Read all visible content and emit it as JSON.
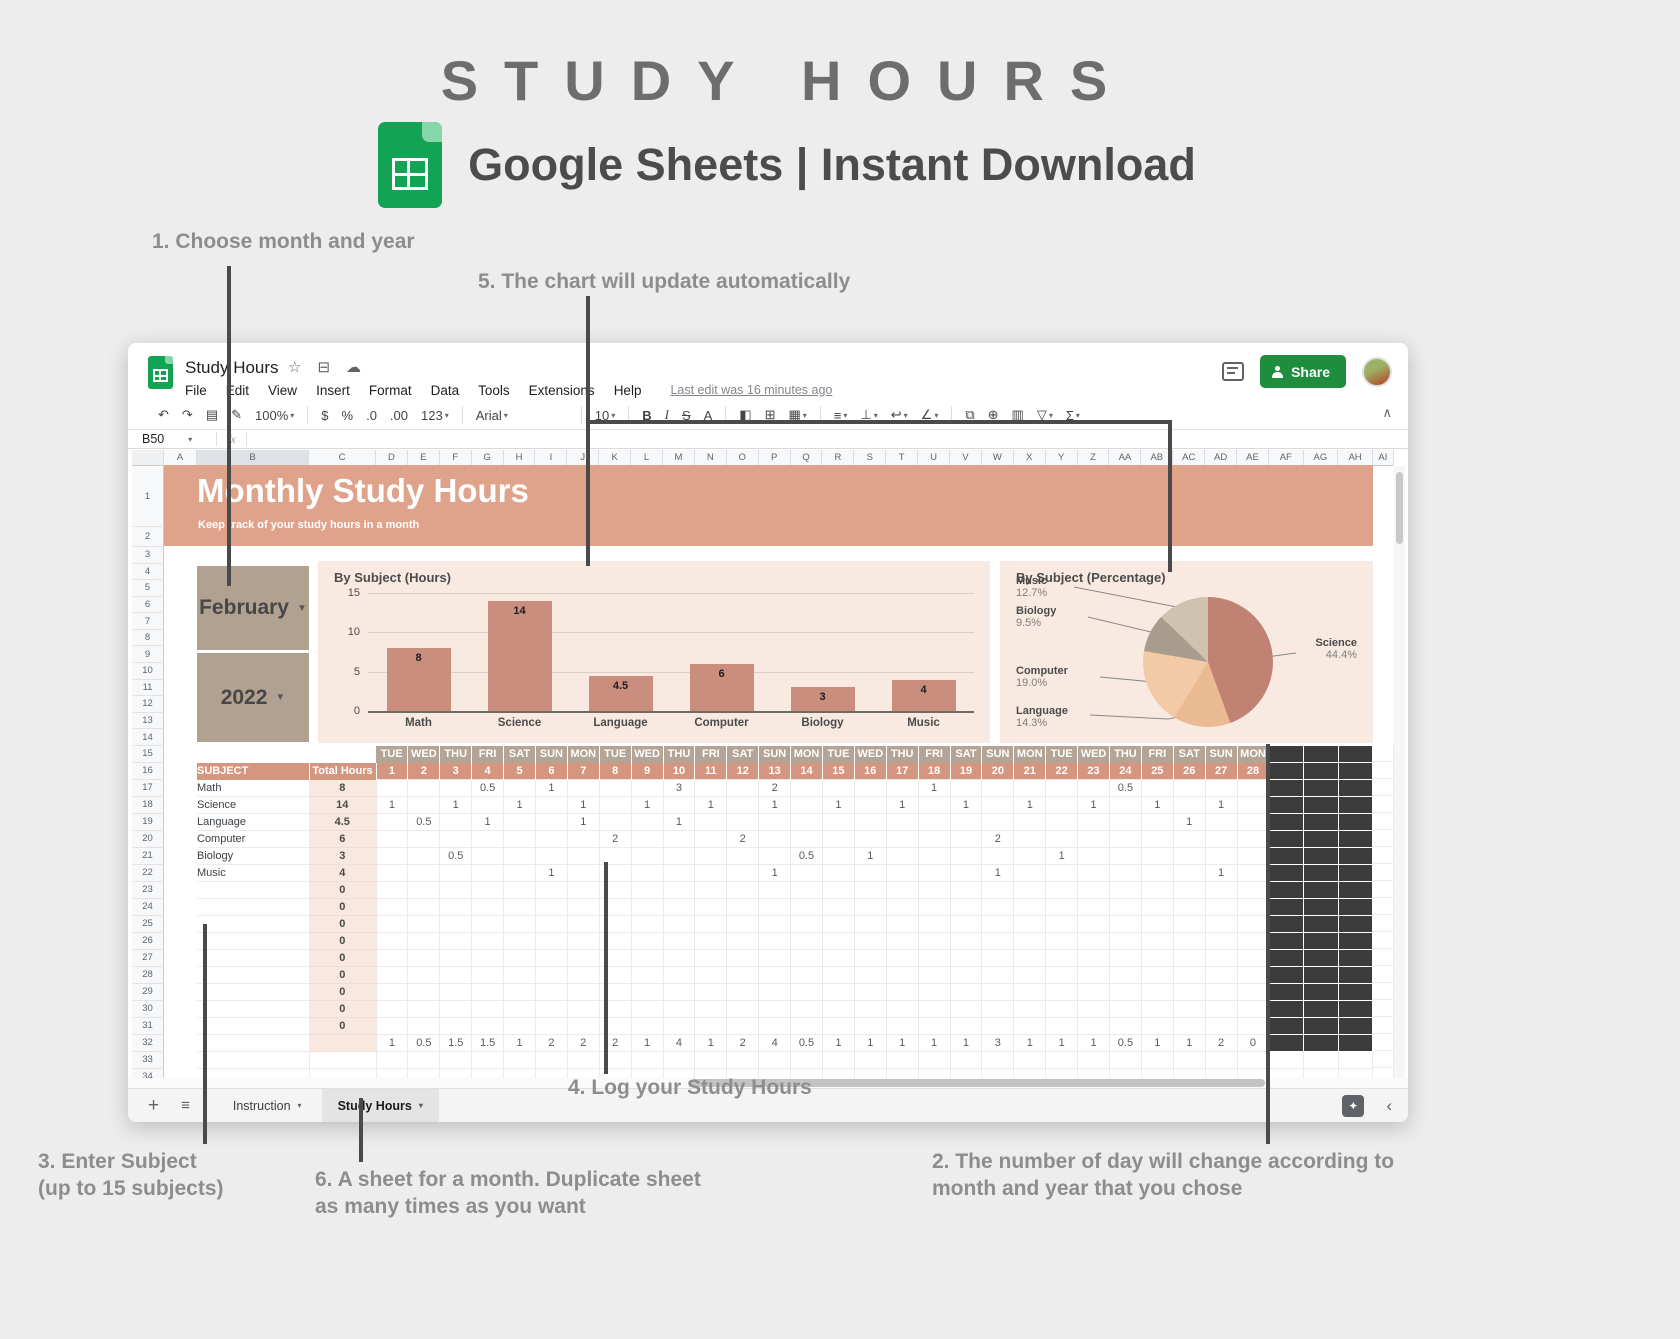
{
  "page": {
    "title": "STUDY HOURS",
    "subtitle": "Google Sheets | Instant Download",
    "bg": "#ededed"
  },
  "annotations": {
    "a1": "1. Choose month and year",
    "a2_line1": "2. The number of day will change according to",
    "a2_line2": "month and year that you chose",
    "a3_line1": "3. Enter Subject",
    "a3_line2": "(up to 15 subjects)",
    "a4": "4. Log your Study Hours",
    "a5": "5. The chart will update automatically",
    "a6_line1": "6. A sheet for a month. Duplicate sheet",
    "a6_line2": "as many times as you want"
  },
  "titlebar": {
    "doc_title": "Study Hours",
    "menus": [
      "File",
      "Edit",
      "View",
      "Insert",
      "Format",
      "Data",
      "Tools",
      "Extensions",
      "Help"
    ],
    "last_edit": "Last edit was 16 minutes ago",
    "share_label": "Share"
  },
  "toolbar": {
    "items": [
      {
        "name": "undo",
        "glyph": "↶"
      },
      {
        "name": "redo",
        "glyph": "↷"
      },
      {
        "name": "print",
        "glyph": "▤"
      },
      {
        "name": "paint-format",
        "glyph": "✎"
      },
      {
        "name": "zoom",
        "glyph": "100%",
        "caret": true
      },
      {
        "sep": true
      },
      {
        "name": "format-currency",
        "glyph": "$"
      },
      {
        "name": "format-percent",
        "glyph": "%"
      },
      {
        "name": "decrease-decimals",
        "glyph": ".0"
      },
      {
        "name": "increase-decimals",
        "glyph": ".00"
      },
      {
        "name": "number-format",
        "glyph": "123",
        "caret": true
      },
      {
        "sep": true
      },
      {
        "name": "font",
        "glyph": "Arial",
        "caret": true,
        "wide": true
      },
      {
        "sep": true
      },
      {
        "name": "font-size",
        "glyph": "10",
        "caret": true
      },
      {
        "sep": true
      },
      {
        "name": "bold",
        "glyph": "B",
        "style": "b"
      },
      {
        "name": "italic",
        "glyph": "I",
        "style": "i"
      },
      {
        "name": "strikethrough",
        "glyph": "S",
        "style": "strike"
      },
      {
        "name": "text-color",
        "glyph": "A"
      },
      {
        "sep": true
      },
      {
        "name": "fill-color",
        "glyph": "◧"
      },
      {
        "name": "borders",
        "glyph": "⊞"
      },
      {
        "name": "merge-cells",
        "glyph": "▦",
        "caret": true
      },
      {
        "sep": true
      },
      {
        "name": "horizontal-align",
        "glyph": "≡",
        "caret": true
      },
      {
        "name": "vertical-align",
        "glyph": "⊥",
        "caret": true
      },
      {
        "name": "text-wrap",
        "glyph": "↩",
        "caret": true
      },
      {
        "name": "text-rotate",
        "glyph": "∠",
        "caret": true
      },
      {
        "sep": true
      },
      {
        "name": "insert-link",
        "glyph": "⧉"
      },
      {
        "name": "insert-comment",
        "glyph": "⊕"
      },
      {
        "name": "insert-chart",
        "glyph": "▥"
      },
      {
        "name": "filter",
        "glyph": "▽",
        "caret": true
      },
      {
        "name": "functions",
        "glyph": "Σ",
        "caret": true
      }
    ]
  },
  "formula_bar": {
    "name_box": "B50",
    "fx": "fx"
  },
  "sheet": {
    "col_letters": [
      "A",
      "B",
      "C",
      "D",
      "E",
      "F",
      "G",
      "H",
      "I",
      "J",
      "K",
      "L",
      "M",
      "N",
      "O",
      "P",
      "Q",
      "R",
      "S",
      "T",
      "U",
      "V",
      "W",
      "X",
      "Y",
      "Z",
      "AA",
      "AB",
      "AC",
      "AD",
      "AE",
      "AF",
      "AG",
      "AH",
      "AI"
    ],
    "row_count": 34,
    "selected_col": "B",
    "banner": {
      "title": "Monthly Study Hours",
      "subtitle": "Keep track of your study hours in a month"
    },
    "month": "February",
    "year": "2022"
  },
  "chart_data": [
    {
      "type": "bar",
      "title": "By Subject (Hours)",
      "categories": [
        "Math",
        "Science",
        "Language",
        "Computer",
        "Biology",
        "Music"
      ],
      "values": [
        8,
        14,
        4.5,
        6,
        3,
        4
      ],
      "value_labels": [
        "8",
        "14",
        "4.5",
        "6",
        "3",
        "4"
      ],
      "xlabel": "",
      "ylabel": "",
      "ylim": [
        0,
        15
      ],
      "yticks": [
        0,
        5,
        10,
        15
      ],
      "grid": true,
      "legend": false,
      "bar_color": "#c98e7e",
      "panel_bg": "#f9eae1"
    },
    {
      "type": "pie",
      "title": "By Subject (Percentage)",
      "slices": [
        {
          "label": "Science",
          "value": 44.4,
          "pct": "44.4%",
          "color": "#bf8273"
        },
        {
          "label": "Language",
          "value": 14.3,
          "pct": "14.3%",
          "color": "#eaba93"
        },
        {
          "label": "Computer",
          "value": 19.0,
          "pct": "19.0%",
          "color": "#f2cba6"
        },
        {
          "label": "Biology",
          "value": 9.5,
          "pct": "9.5%",
          "color": "#a89d8d"
        },
        {
          "label": "Music",
          "value": 12.7,
          "pct": "12.7%",
          "color": "#cfc2ae"
        }
      ],
      "panel_bg": "#f9eae1"
    }
  ],
  "table": {
    "subject_header": "SUBJECT",
    "total_header": "Total Hours",
    "days_of_week": [
      "TUE",
      "WED",
      "THU",
      "FRI",
      "SAT",
      "SUN",
      "MON",
      "TUE",
      "WED",
      "THU",
      "FRI",
      "SAT",
      "SUN",
      "MON",
      "TUE",
      "WED",
      "THU",
      "FRI",
      "SAT",
      "SUN",
      "MON",
      "TUE",
      "WED",
      "THU",
      "FRI",
      "SAT",
      "SUN",
      "MON"
    ],
    "day_numbers": [
      "1",
      "2",
      "3",
      "4",
      "5",
      "6",
      "7",
      "8",
      "9",
      "10",
      "11",
      "12",
      "13",
      "14",
      "15",
      "16",
      "17",
      "18",
      "19",
      "20",
      "21",
      "22",
      "23",
      "24",
      "25",
      "26",
      "27",
      "28"
    ],
    "rows": [
      {
        "name": "Math",
        "total": "8",
        "days": {
          "4": "0.5",
          "6": "1",
          "10": "3",
          "13": "2",
          "18": "1",
          "24": "0.5"
        }
      },
      {
        "name": "Science",
        "total": "14",
        "days": {
          "1": "1",
          "3": "1",
          "5": "1",
          "7": "1",
          "9": "1",
          "11": "1",
          "13": "1",
          "15": "1",
          "17": "1",
          "19": "1",
          "21": "1",
          "23": "1",
          "25": "1",
          "27": "1"
        }
      },
      {
        "name": "Language",
        "total": "4.5",
        "days": {
          "2": "0.5",
          "4": "1",
          "7": "1",
          "10": "1",
          "26": "1"
        }
      },
      {
        "name": "Computer",
        "total": "6",
        "days": {
          "8": "2",
          "12": "2",
          "20": "2"
        }
      },
      {
        "name": "Biology",
        "total": "3",
        "days": {
          "3": "0.5",
          "14": "0.5",
          "16": "1",
          "22": "1"
        }
      },
      {
        "name": "Music",
        "total": "4",
        "days": {
          "6": "1",
          "13": "1",
          "20": "1",
          "27": "1"
        }
      }
    ],
    "empty_rows_count": 9,
    "empty_total": "0",
    "daily_totals": [
      "1",
      "0.5",
      "1.5",
      "1.5",
      "1",
      "2",
      "2",
      "2",
      "1",
      "4",
      "1",
      "2",
      "4",
      "0.5",
      "1",
      "1",
      "1",
      "1",
      "1",
      "3",
      "1",
      "1",
      "1",
      "0.5",
      "1",
      "1",
      "2",
      "0"
    ]
  },
  "tabs": {
    "sheet1": "Instruction",
    "sheet2": "Study Hours"
  },
  "colors": {
    "banner": "#dfa38c",
    "header_row": "#d59680",
    "dow_row": "#b3a496",
    "month_box": "#b1a191",
    "share_green": "#1e8e3e",
    "dark_block": "#3b3b3b"
  }
}
